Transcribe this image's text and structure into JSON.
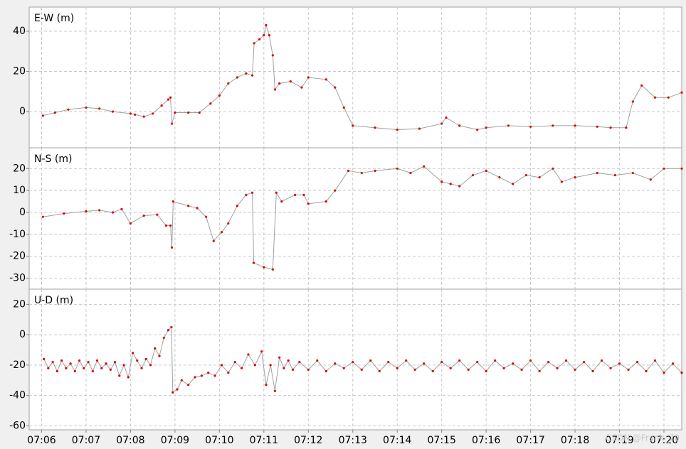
{
  "chart_data": [
    {
      "type": "line",
      "title": "E-W (m)",
      "color": "#e00000",
      "line_color": "#a0a0a0",
      "grid": true,
      "xlim": [
        425.72,
        440.4
      ],
      "ylim": [
        -18,
        52
      ],
      "yticks": [
        0,
        20,
        40
      ],
      "x": [
        426.03,
        426.3,
        426.6,
        427,
        427.3,
        427.6,
        428,
        428.1,
        428.3,
        428.5,
        428.7,
        428.85,
        428.9,
        428.93,
        429,
        429.3,
        429.55,
        429.8,
        430,
        430.2,
        430.4,
        430.6,
        430.74,
        430.78,
        430.9,
        431,
        431.05,
        431.12,
        431.2,
        431.25,
        431.35,
        431.6,
        431.85,
        432,
        432.4,
        432.6,
        432.8,
        433,
        433.5,
        434,
        434.5,
        435,
        435.1,
        435.4,
        435.8,
        436,
        436.5,
        437,
        437.5,
        438,
        438.5,
        438.8,
        439.15,
        439.3,
        439.5,
        439.8,
        440.1,
        440.4
      ],
      "values": [
        -2,
        -0.5,
        1,
        2,
        1.5,
        0,
        -1,
        -1.5,
        -2.5,
        -1,
        3,
        6,
        7,
        -6,
        -0.5,
        -0.5,
        -0.5,
        4,
        8,
        14,
        17,
        19,
        18,
        34,
        36,
        38,
        43,
        38,
        28,
        11,
        14,
        15,
        12,
        17,
        16,
        12,
        2,
        -7,
        -8,
        -9,
        -8.5,
        -6,
        -3,
        -7,
        -9,
        -8,
        -7,
        -7.5,
        -7,
        -7,
        -7.5,
        -8,
        -8,
        5,
        13,
        7,
        7,
        9.5
      ]
    },
    {
      "type": "line",
      "title": "N-S (m)",
      "color": "#e00000",
      "line_color": "#a0a0a0",
      "grid": true,
      "xlim": [
        425.72,
        440.4
      ],
      "ylim": [
        -35,
        29.5
      ],
      "yticks": [
        -30,
        -20,
        -10,
        0,
        10,
        20
      ],
      "x": [
        426.03,
        426.5,
        427,
        427.3,
        427.6,
        427.8,
        428,
        428.3,
        428.6,
        428.8,
        428.9,
        428.93,
        428.96,
        429.3,
        429.5,
        429.7,
        429.87,
        430.05,
        430.2,
        430.4,
        430.6,
        430.74,
        430.77,
        431,
        431.2,
        431.28,
        431.4,
        431.7,
        431.9,
        432,
        432.4,
        432.6,
        432.9,
        433.2,
        433.5,
        434,
        434.3,
        434.6,
        435,
        435.2,
        435.4,
        435.7,
        436,
        436.3,
        436.6,
        436.9,
        437.2,
        437.5,
        437.7,
        438,
        438.5,
        438.9,
        439.3,
        439.7,
        440,
        440.4
      ],
      "values": [
        -2,
        -0.5,
        0.5,
        1,
        0,
        1.5,
        -5,
        -1.5,
        -1,
        -6,
        -6,
        -16,
        5,
        3,
        2,
        -2,
        -13,
        -9,
        -5,
        3,
        8,
        9,
        -23,
        -25,
        -26,
        9,
        5,
        8,
        8,
        4,
        5,
        10,
        19,
        18,
        19,
        20,
        18,
        21,
        14,
        13,
        12,
        17,
        19,
        16,
        13,
        17,
        16,
        20,
        14,
        16,
        18,
        17,
        18,
        15,
        20,
        20
      ]
    },
    {
      "type": "line",
      "title": "U-D (m)",
      "color": "#e00000",
      "line_color": "#a0a0a0",
      "grid": true,
      "xlim": [
        425.72,
        440.4
      ],
      "ylim": [
        -62.6,
        30
      ],
      "yticks": [
        -60,
        -40,
        -20,
        0,
        20
      ],
      "xticks": [
        {
          "value": 426,
          "label": "07:06"
        },
        {
          "value": 427,
          "label": "07:07"
        },
        {
          "value": 428,
          "label": "07:08"
        },
        {
          "value": 429,
          "label": "07:09"
        },
        {
          "value": 430,
          "label": "07:10"
        },
        {
          "value": 431,
          "label": "07:11"
        },
        {
          "value": 432,
          "label": "07:12"
        },
        {
          "value": 433,
          "label": "07:13"
        },
        {
          "value": 434,
          "label": "07:14"
        },
        {
          "value": 435,
          "label": "07:15"
        },
        {
          "value": 436,
          "label": "07:16"
        },
        {
          "value": 437,
          "label": "07:17"
        },
        {
          "value": 438,
          "label": "07:18"
        },
        {
          "value": 439,
          "label": "07:19"
        },
        {
          "value": 440,
          "label": "07:20"
        }
      ],
      "x": [
        426.05,
        426.15,
        426.25,
        426.35,
        426.45,
        426.55,
        426.65,
        426.75,
        426.85,
        426.95,
        427.05,
        427.15,
        427.25,
        427.35,
        427.45,
        427.55,
        427.65,
        427.75,
        427.85,
        427.95,
        428.05,
        428.15,
        428.25,
        428.35,
        428.45,
        428.55,
        428.65,
        428.75,
        428.85,
        428.92,
        428.95,
        429.05,
        429.15,
        429.3,
        429.45,
        429.6,
        429.75,
        429.9,
        430.05,
        430.2,
        430.35,
        430.5,
        430.65,
        430.8,
        430.95,
        431.05,
        431.15,
        431.25,
        431.35,
        431.45,
        431.55,
        431.65,
        431.8,
        432,
        432.2,
        432.4,
        432.6,
        432.8,
        433,
        433.2,
        433.4,
        433.6,
        433.8,
        434,
        434.2,
        434.4,
        434.6,
        434.8,
        435,
        435.2,
        435.4,
        435.6,
        435.8,
        436,
        436.2,
        436.4,
        436.6,
        436.8,
        437,
        437.2,
        437.4,
        437.6,
        437.8,
        438,
        438.2,
        438.4,
        438.6,
        438.8,
        439,
        439.2,
        439.4,
        439.6,
        439.8,
        440,
        440.2,
        440.4
      ],
      "values": [
        -16,
        -22,
        -18,
        -24,
        -17,
        -22,
        -19,
        -24,
        -17,
        -22,
        -18,
        -24,
        -17,
        -22,
        -19,
        -23,
        -18,
        -27,
        -20,
        -28,
        -12,
        -17,
        -22,
        -16,
        -20,
        -9,
        -14,
        -2,
        3,
        5,
        -38,
        -36,
        -30,
        -33,
        -28,
        -27,
        -25,
        -27,
        -20,
        -25,
        -18,
        -22,
        -13,
        -20,
        -11,
        -33,
        -20,
        -37,
        -15,
        -22,
        -17,
        -23,
        -18,
        -23,
        -17,
        -24,
        -19,
        -22,
        -18,
        -23,
        -17,
        -24,
        -18,
        -22,
        -17,
        -23,
        -19,
        -24,
        -18,
        -22,
        -17,
        -23,
        -18,
        -24,
        -17,
        -22,
        -19,
        -23,
        -17,
        -24,
        -18,
        -22,
        -17,
        -23,
        -18,
        -24,
        -17,
        -22,
        -19,
        -23,
        -18,
        -24,
        -17,
        -25,
        -19,
        -25
      ]
    }
  ],
  "watermark": "CSDN @Frank_70"
}
